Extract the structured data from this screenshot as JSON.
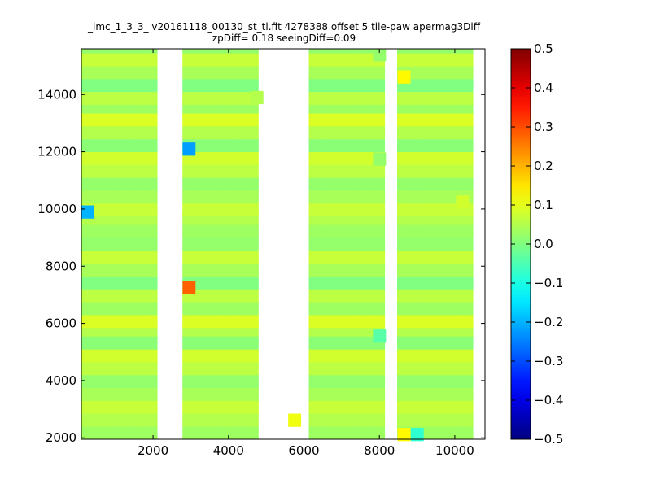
{
  "chart_data": {
    "type": "heatmap",
    "title_lines": [
      "_lmc_1_3_3_ v20161118_00130_st_tl.fit 4278388 offset 5 tile-paw apermag3Diff",
      "zpDiff= 0.18 seeingDiff=0.09"
    ],
    "xlabel": "",
    "ylabel": "",
    "xlim": [
      100,
      10800
    ],
    "ylim": [
      1950,
      15600
    ],
    "x_ticks": [
      2000,
      4000,
      6000,
      8000,
      10000
    ],
    "y_ticks": [
      2000,
      4000,
      6000,
      8000,
      10000,
      12000,
      14000
    ],
    "colorbar": {
      "colormap": "jet",
      "vmin": -0.5,
      "vmax": 0.5,
      "ticks": [
        "0.5",
        "0.4",
        "0.3",
        "0.2",
        "0.1",
        "0.0",
        "−0.1",
        "−0.2",
        "−0.3",
        "−0.4",
        "−0.5"
      ]
    },
    "cell_size": {
      "dx": 335,
      "dy": 450
    },
    "x_bands": [
      {
        "start": 100,
        "count": 1
      },
      {
        "start": 770,
        "count": 2
      },
      {
        "start": 2780,
        "count": 3
      },
      {
        "start": 6130,
        "count": 3
      },
      {
        "start": 8470,
        "count": 1
      },
      {
        "start": 9140,
        "count": 2
      }
    ],
    "row_starts": [
      {
        "start": 1950,
        "count": 3
      },
      {
        "start": 5850,
        "count": 3
      },
      {
        "start": 9750,
        "count": 3
      },
      {
        "start": 13650,
        "count": 3
      }
    ],
    "wide_columns": [
      {
        "start": 770,
        "end": 2000
      },
      {
        "start": 2780,
        "end": 5050
      },
      {
        "start": 6130,
        "end": 8350
      },
      {
        "start": 9140,
        "end": 10800
      }
    ],
    "narrow_columns": [
      {
        "start": 100,
        "end": 770
      },
      {
        "start": 8470,
        "end": 9140
      }
    ],
    "base_values": [
      0.03,
      0.05,
      0.07,
      0.04,
      0.02,
      0.06,
      0.08,
      0.01,
      0.05,
      0.09,
      0.03,
      0.06,
      0.0,
      0.04,
      0.07,
      0.02
    ],
    "special_cells": [
      {
        "x": 2950,
        "y": 12100,
        "value": -0.22
      },
      {
        "x": 2950,
        "y": 7250,
        "value": 0.28
      },
      {
        "x": 250,
        "y": 9900,
        "value": -0.2
      },
      {
        "x": 8650,
        "y": 14620,
        "value": 0.13
      },
      {
        "x": 8650,
        "y": 2120,
        "value": 0.13
      },
      {
        "x": 9000,
        "y": 2120,
        "value": -0.08
      },
      {
        "x": 5750,
        "y": 2620,
        "value": 0.11
      },
      {
        "x": 10200,
        "y": 10250,
        "value": 0.08
      },
      {
        "x": 8000,
        "y": 5560,
        "value": -0.04
      },
      {
        "x": 8000,
        "y": 11750,
        "value": 0.02
      },
      {
        "x": 8000,
        "y": 15400,
        "value": 0.02
      },
      {
        "x": 4750,
        "y": 13900,
        "value": 0.05
      }
    ]
  }
}
